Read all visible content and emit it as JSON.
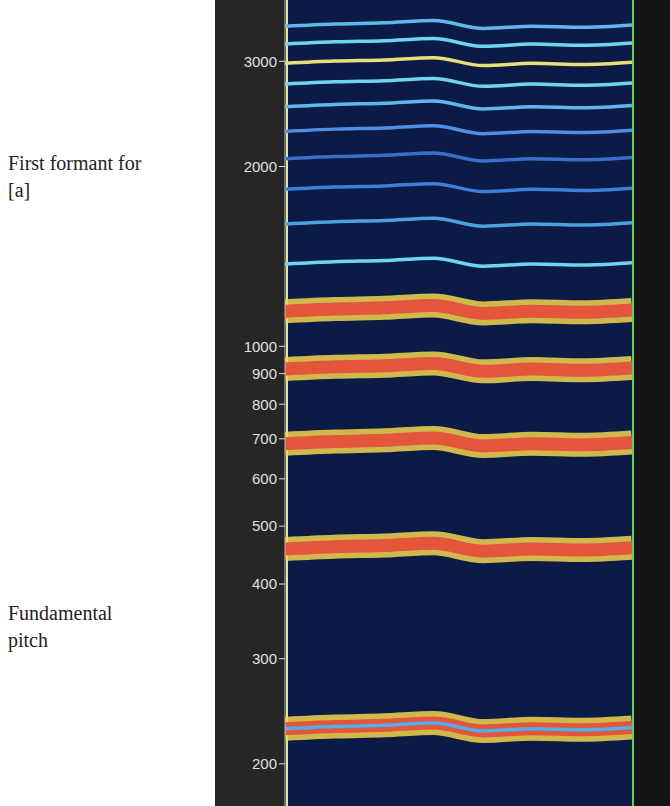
{
  "chart_data": {
    "type": "line",
    "log": "y",
    "tick_labels": "y",
    "grid": false,
    "annotations": [
      "First formant for [a]",
      "Fundamental pitch"
    ],
    "x": [
      0,
      1,
      2,
      3,
      4,
      5,
      6,
      7
    ],
    "xlim": [
      0,
      7
    ],
    "ylim": [
      170,
      3800
    ],
    "yticks": [
      200,
      300,
      400,
      500,
      600,
      700,
      800,
      900,
      1000,
      2000,
      3000
    ],
    "series": [
      {
        "color": "#e4553c",
        "line_style": "thick",
        "values": [
          229,
          231,
          232,
          234,
          227,
          229,
          228,
          230
        ]
      },
      {
        "color": "#e4553c",
        "line_style": "thick",
        "values": [
          458,
          462,
          464,
          468,
          454,
          458,
          456,
          460
        ]
      },
      {
        "color": "#e4553c",
        "line_style": "thick",
        "values": [
          687,
          693,
          696,
          702,
          681,
          687,
          684,
          690
        ]
      },
      {
        "color": "#e4553c",
        "line_style": "thick",
        "values": [
          916,
          924,
          928,
          936,
          908,
          916,
          912,
          920
        ]
      },
      {
        "color": "#e4553c",
        "line_style": "thick",
        "values": [
          1145,
          1155,
          1160,
          1170,
          1135,
          1145,
          1140,
          1150
        ]
      },
      {
        "color": "#6fd3f2",
        "line_style": "thin",
        "values": [
          1374,
          1386,
          1392,
          1404,
          1362,
          1374,
          1368,
          1380
        ]
      },
      {
        "color": "#4aa3e0",
        "line_style": "thin",
        "values": [
          1603,
          1617,
          1624,
          1638,
          1589,
          1603,
          1596,
          1610
        ]
      },
      {
        "color": "#3d7fd4",
        "line_style": "thin",
        "values": [
          1832,
          1848,
          1856,
          1872,
          1816,
          1832,
          1824,
          1840
        ]
      },
      {
        "color": "#3a6fc8",
        "line_style": "thin",
        "values": [
          2061,
          2079,
          2088,
          2106,
          2043,
          2061,
          2052,
          2070
        ]
      },
      {
        "color": "#4f8ee0",
        "line_style": "thin",
        "values": [
          2290,
          2310,
          2320,
          2340,
          2270,
          2290,
          2280,
          2300
        ]
      },
      {
        "color": "#5fb8ec",
        "line_style": "thin",
        "values": [
          2519,
          2541,
          2552,
          2574,
          2497,
          2519,
          2508,
          2530
        ]
      },
      {
        "color": "#6fd3f2",
        "line_style": "thin",
        "values": [
          2748,
          2772,
          2784,
          2808,
          2724,
          2748,
          2736,
          2760
        ]
      },
      {
        "color": "#e8e07a",
        "line_style": "thin",
        "values": [
          2977,
          3003,
          3016,
          3042,
          2951,
          2977,
          2964,
          2990
        ]
      },
      {
        "color": "#6fd3f2",
        "line_style": "thin",
        "values": [
          3206,
          3234,
          3248,
          3276,
          3178,
          3206,
          3192,
          3220
        ]
      },
      {
        "color": "#5fb8ec",
        "line_style": "thin",
        "values": [
          3435,
          3465,
          3480,
          3510,
          3405,
          3435,
          3420,
          3450
        ]
      },
      {
        "color": "#4fb0f0",
        "line_style": "thin",
        "values": [
          229,
          231,
          232,
          234,
          227,
          229,
          228,
          230
        ]
      }
    ]
  }
}
